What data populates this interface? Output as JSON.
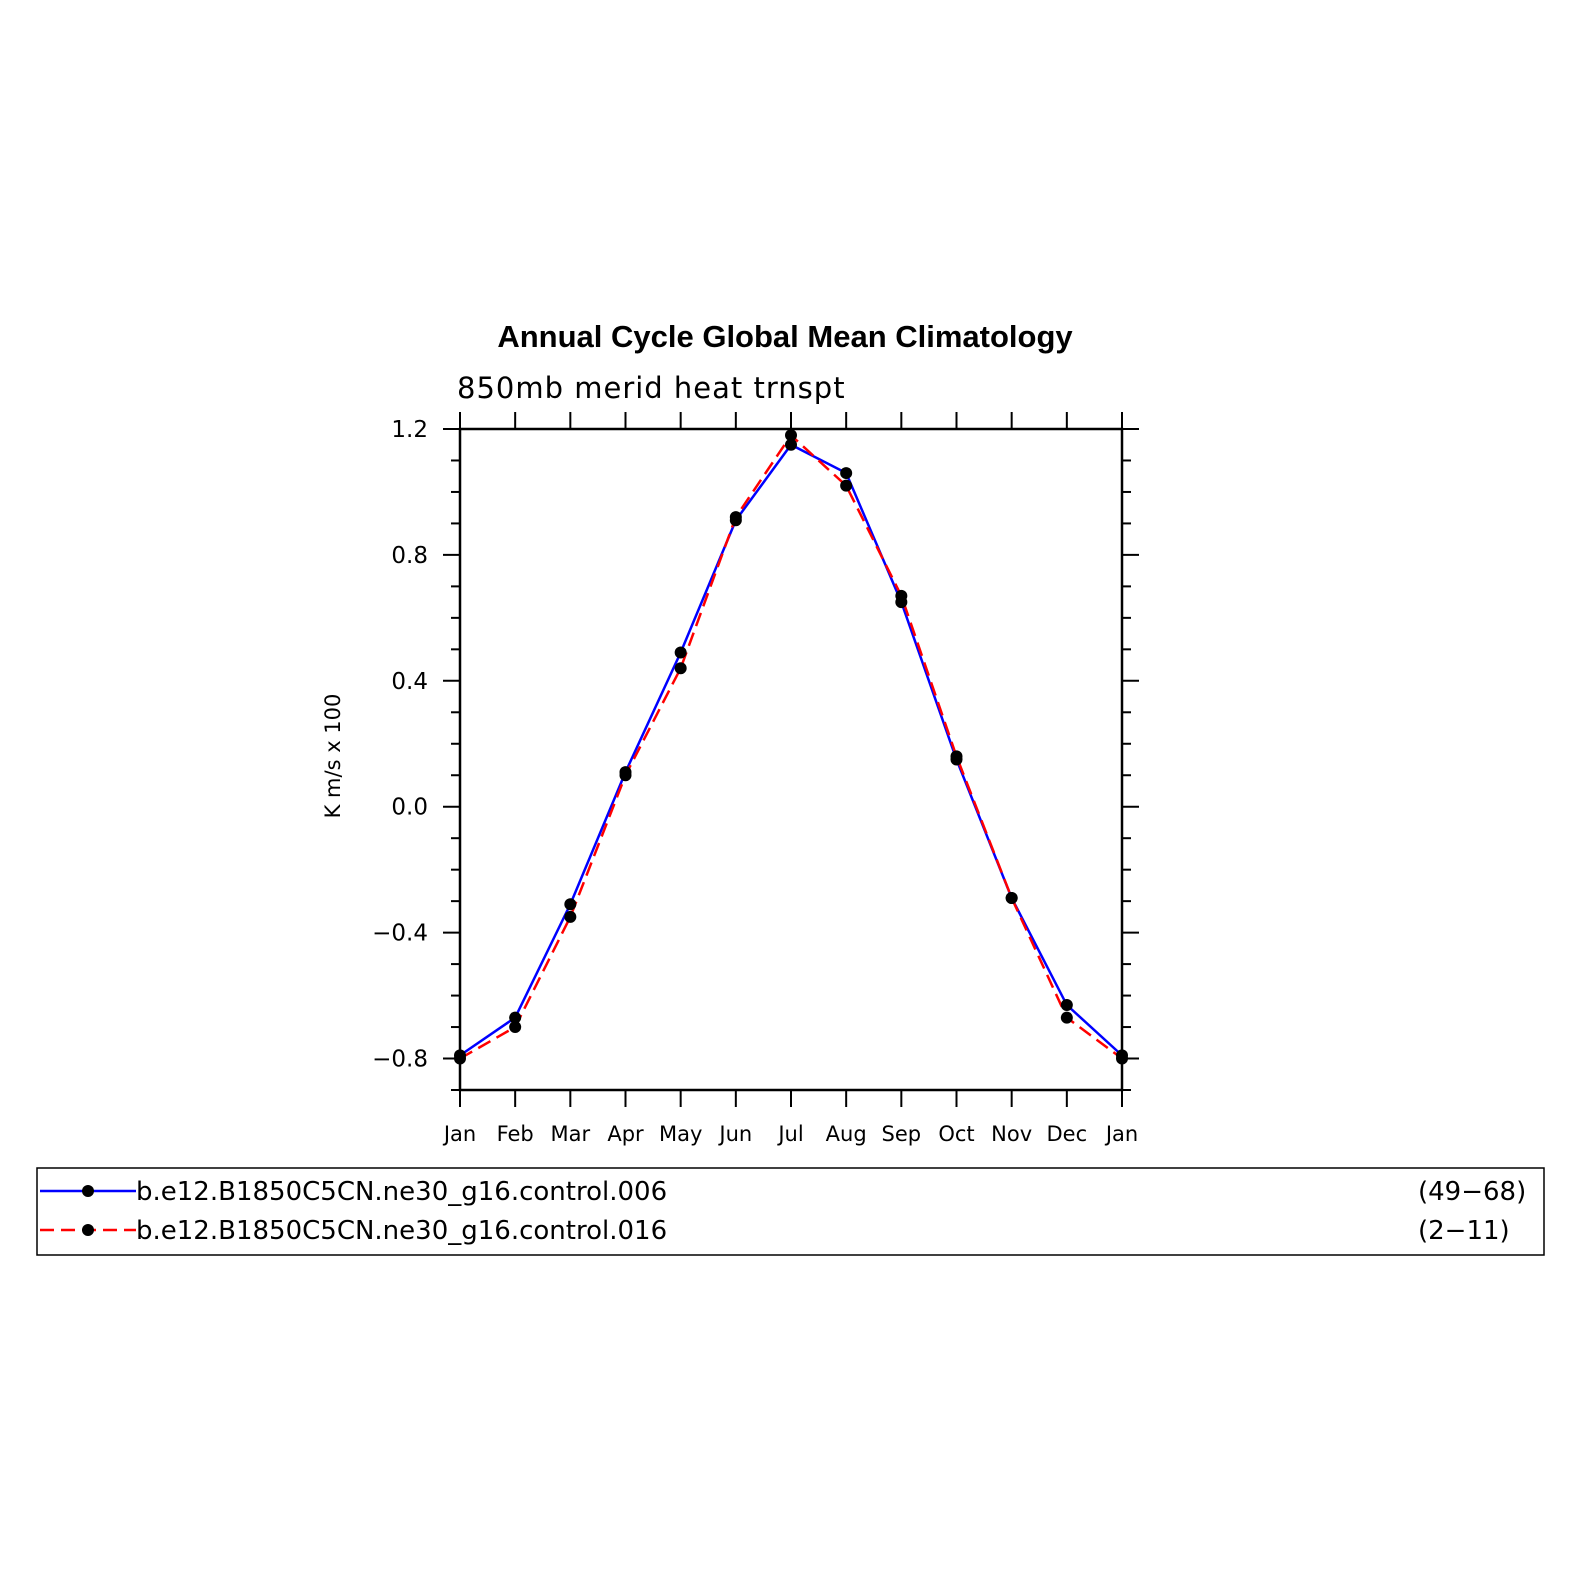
{
  "chart_data": {
    "type": "line",
    "title": "Annual Cycle Global Mean Climatology",
    "subtitle": "850mb merid heat trnspt",
    "ylabel": "K m/s x 100",
    "xlabel": "",
    "categories": [
      "Jan",
      "Feb",
      "Mar",
      "Apr",
      "May",
      "Jun",
      "Jul",
      "Aug",
      "Sep",
      "Oct",
      "Nov",
      "Dec",
      "Jan"
    ],
    "ylim": [
      -0.9,
      1.2
    ],
    "yticks": [
      1.2,
      0.8,
      0.4,
      0.0,
      -0.4,
      -0.8
    ],
    "ytick_labels": [
      "1.2",
      "0.8",
      "0.4",
      "0.0",
      "−0.4",
      "−0.8"
    ],
    "grid": false,
    "legend_position": "bottom",
    "series": [
      {
        "name": "b.e12.B1850C5CN.ne30_g16.control.006",
        "years": "(49−68)",
        "color": "#0000ff",
        "dash": "solid",
        "values": [
          -0.79,
          -0.67,
          -0.31,
          0.11,
          0.49,
          0.91,
          1.15,
          1.06,
          0.65,
          0.15,
          -0.29,
          -0.63,
          -0.79
        ]
      },
      {
        "name": "b.e12.B1850C5CN.ne30_g16.control.016",
        "years": "(2−11)",
        "color": "#ff0000",
        "dash": "dashed",
        "values": [
          -0.8,
          -0.7,
          -0.35,
          0.1,
          0.44,
          0.92,
          1.18,
          1.02,
          0.67,
          0.16,
          -0.29,
          -0.67,
          -0.8
        ]
      }
    ]
  }
}
